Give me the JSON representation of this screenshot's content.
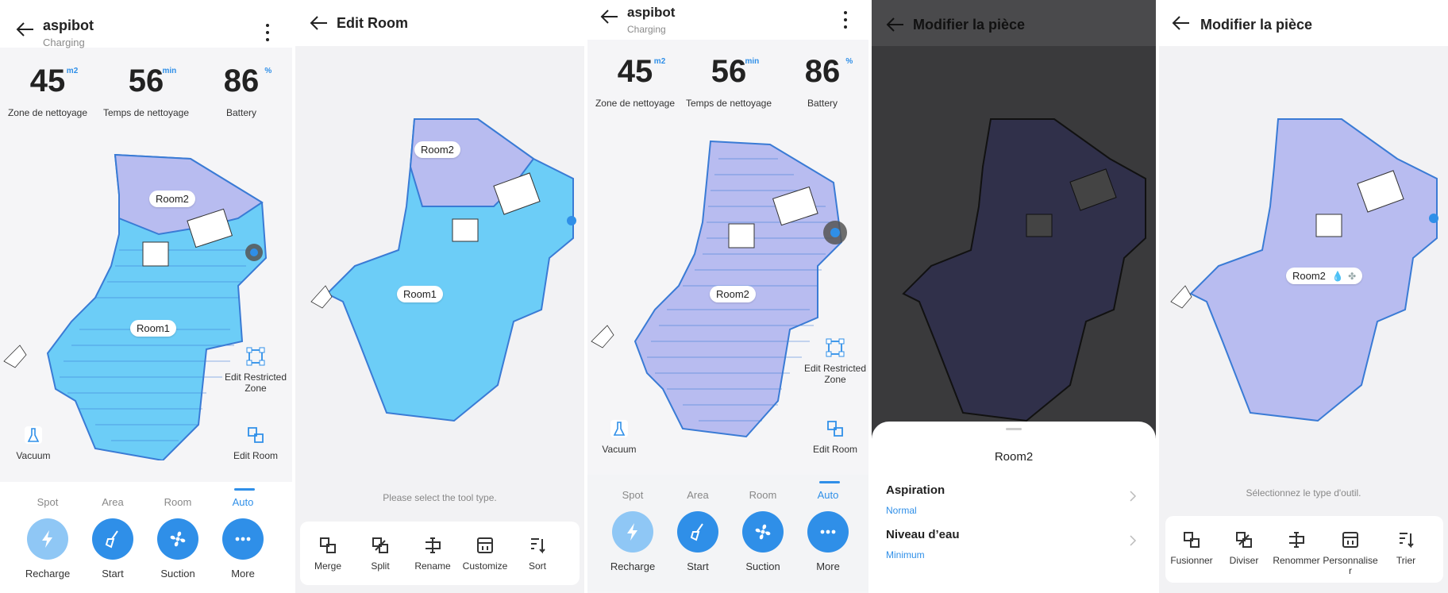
{
  "colors": {
    "accent": "#2f8fe8",
    "room_blue": "#6ccdf7",
    "room_lavender": "#b8bcf0",
    "dim": "#3a3a3c"
  },
  "screen1": {
    "title": "aspibot",
    "status": "Charging",
    "stats": [
      {
        "value": "45",
        "unit": "m2",
        "label": "Zone de nettoyage"
      },
      {
        "value": "56",
        "unit": "min",
        "label": "Temps de nettoyage"
      },
      {
        "value": "86",
        "unit": "%",
        "label": "Battery"
      }
    ],
    "rooms": {
      "a": "Room2",
      "b": "Room1"
    },
    "vacuum_label": "Vacuum",
    "edit_zone_label": "Edit Restricted Zone",
    "edit_room_label": "Edit Room",
    "tabs": [
      "Spot",
      "Area",
      "Room",
      "Auto"
    ],
    "actions": [
      "Recharge",
      "Start",
      "Suction",
      "More"
    ]
  },
  "screen2": {
    "title": "Edit Room",
    "rooms": {
      "a": "Room2",
      "b": "Room1"
    },
    "hint": "Please select the tool type.",
    "tools": [
      "Merge",
      "Split",
      "Rename",
      "Customize",
      "Sort"
    ]
  },
  "screen3": {
    "title": "aspibot",
    "status": "Charging",
    "stats": [
      {
        "value": "45",
        "unit": "m2",
        "label": "Zone de nettoyage"
      },
      {
        "value": "56",
        "unit": "min",
        "label": "Temps de nettoyage"
      },
      {
        "value": "86",
        "unit": "%",
        "label": "Battery"
      }
    ],
    "rooms": {
      "a": "Room2"
    },
    "vacuum_label": "Vacuum",
    "edit_zone_label": "Edit Restricted Zone",
    "edit_room_label": "Edit Room",
    "tabs": [
      "Spot",
      "Area",
      "Room",
      "Auto"
    ],
    "actions": [
      "Recharge",
      "Start",
      "Suction",
      "More"
    ]
  },
  "screen4": {
    "title": "Modifier la pièce",
    "sheet_title": "Room2",
    "rows": [
      {
        "label": "Aspiration",
        "value": "Normal"
      },
      {
        "label": "Niveau d’eau",
        "value": "Minimum"
      }
    ]
  },
  "screen5": {
    "title": "Modifier la pièce",
    "rooms": {
      "a": "Room2"
    },
    "hint": "Sélectionnez le type d'outil.",
    "tools": [
      "Fusionner",
      "Diviser",
      "Renommer",
      "Personnaliser",
      "Trier"
    ]
  }
}
